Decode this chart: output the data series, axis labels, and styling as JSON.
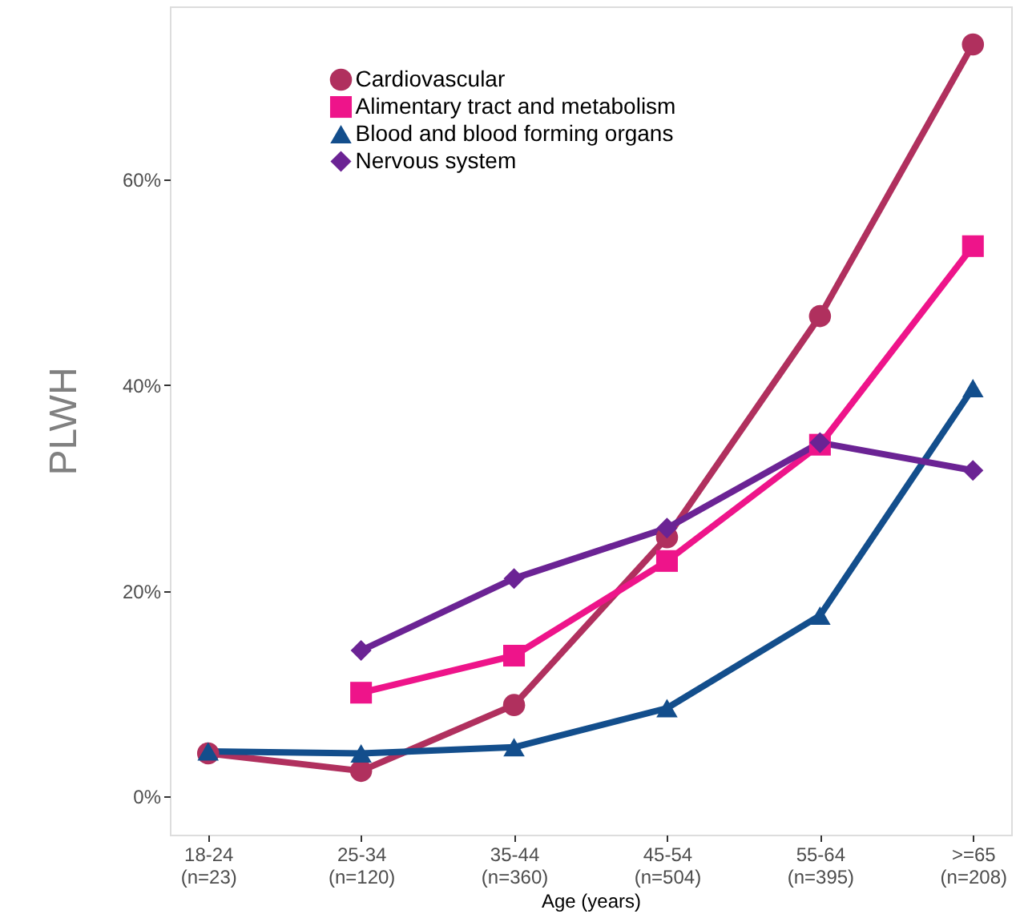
{
  "chart_data": {
    "type": "line",
    "xlabel": "Age (years)",
    "ylabel": "PLWH",
    "categories": [
      "18-24\n(n=23)",
      "25-34\n(n=120)",
      "35-44\n(n=360)",
      "45-54\n(n=504)",
      "55-64\n(n=395)",
      ">=65\n(n=208)"
    ],
    "series": [
      {
        "name": "Cardiovascular",
        "color": "#b0305e",
        "marker": "circle",
        "values": [
          4.2,
          2.5,
          8.9,
          25.2,
          46.7,
          73.1
        ]
      },
      {
        "name": "Alimentary tract and metabolism",
        "color": "#ee148a",
        "marker": "square",
        "values": [
          null,
          10.1,
          13.7,
          22.9,
          34.2,
          53.5
        ]
      },
      {
        "name": "Blood and blood forming organs",
        "color": "#134e8c",
        "marker": "triangle",
        "values": [
          4.4,
          4.2,
          4.8,
          8.6,
          17.6,
          39.7
        ]
      },
      {
        "name": "Nervous system",
        "color": "#6b2394",
        "marker": "diamond",
        "values": [
          null,
          14.2,
          21.2,
          26.1,
          34.4,
          31.7
        ]
      }
    ],
    "ylim": [
      -3.7,
      76.8
    ],
    "yticks": [
      {
        "value": 0,
        "label": "0%"
      },
      {
        "value": 20,
        "label": "20%"
      },
      {
        "value": 40,
        "label": "40%"
      },
      {
        "value": 60,
        "label": "60%"
      }
    ],
    "grid": false,
    "legend": "top left",
    "line_style": "solid"
  }
}
